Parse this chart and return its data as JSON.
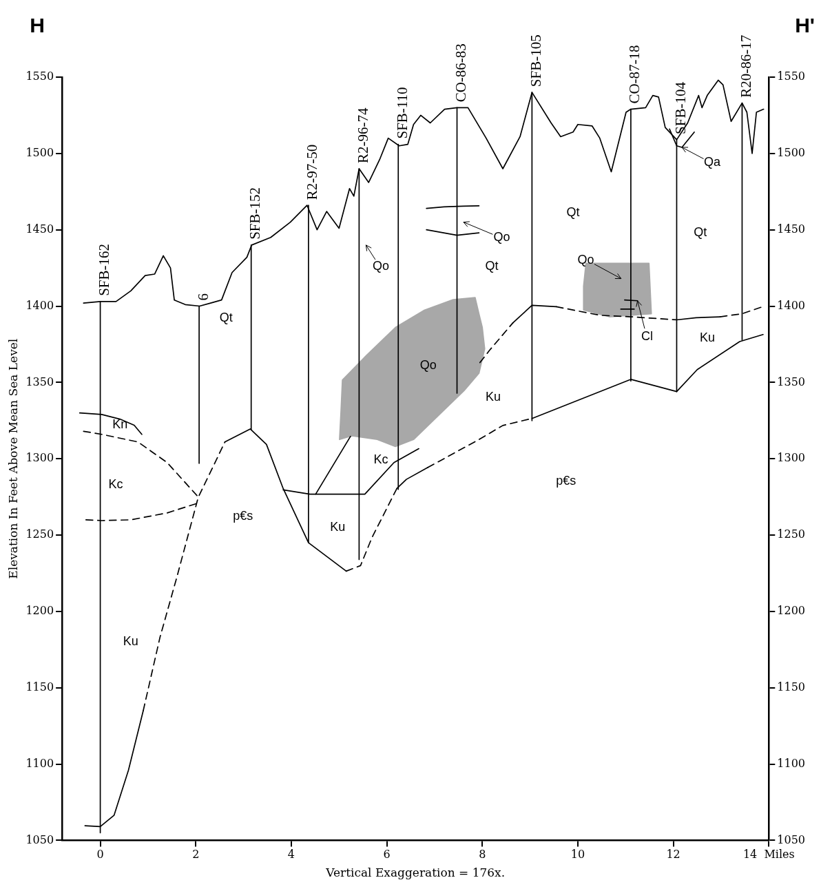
{
  "chart_data": {
    "type": "line",
    "xlabel": "Vertical Exaggeration = 176x.",
    "ylabel": "Elevation In Feet Above Mean Sea Level",
    "xlim": [
      -0.8,
      14
    ],
    "xticks": [
      0,
      2,
      4,
      6,
      8,
      10,
      12,
      {
        "value": 14,
        "label": "14  Miles"
      }
    ],
    "ylim": [
      1050,
      1550
    ],
    "yticks": [
      1050,
      1100,
      1150,
      1200,
      1250,
      1300,
      1350,
      1400,
      1450,
      1500,
      1550
    ],
    "y2lim": [
      1050,
      1550
    ],
    "y2ticks": [
      1050,
      1100,
      1150,
      1200,
      1250,
      1300,
      1350,
      1400,
      1450,
      1500,
      1550
    ],
    "grid": false,
    "legend": false,
    "marker": "none",
    "line_style": "solid",
    "series": [
      {
        "color": "#000000",
        "x": [
          -0.35,
          0,
          0.33,
          0.64,
          0.94,
          1.14,
          1.32,
          1.47,
          1.55,
          1.78,
          2.08,
          2.31,
          2.54,
          2.76,
          3.07,
          3.17,
          3.57,
          3.98,
          4.33,
          4.54,
          4.74,
          5.0,
          5.22,
          5.31,
          5.42,
          5.62,
          5.85,
          6.03,
          6.26,
          6.44,
          6.56,
          6.71,
          6.91,
          7.21,
          7.47,
          7.7,
          8.08,
          8.43,
          8.79,
          9.04,
          9.44,
          9.64,
          9.9,
          10.0,
          10.3,
          10.46,
          10.7,
          11.01,
          11.11,
          11.42,
          11.57,
          11.69,
          11.83,
          12.07,
          12.3,
          12.53,
          12.6,
          12.71,
          12.94,
          13.04,
          13.21,
          13.44,
          13.54,
          13.65,
          13.74,
          13.89
        ],
        "values": [
          1402,
          1403,
          1403,
          1410,
          1420,
          1421,
          1433,
          1425,
          1404,
          1401,
          1400,
          1402,
          1404,
          1422,
          1432,
          1440,
          1445,
          1455,
          1466,
          1450,
          1462,
          1451,
          1477,
          1472,
          1490,
          1481,
          1496,
          1510,
          1505,
          1506,
          1519,
          1525,
          1520,
          1529,
          1530,
          1530,
          1510,
          1490,
          1511,
          1540,
          1520,
          1511,
          1514,
          1519,
          1518,
          1510,
          1488,
          1527,
          1529,
          1530,
          1538,
          1537,
          1517,
          1509,
          1520,
          1538,
          1530,
          1538,
          1548,
          1545,
          1521,
          1533,
          1527,
          1500,
          1527,
          1529
        ]
      },
      {
        "name": "SFB-162",
        "color": "#000000",
        "x": [
          0,
          0
        ],
        "values": [
          1403,
          1055
        ]
      },
      {
        "name": "6",
        "color": "#000000",
        "x": [
          2.07,
          2.07
        ],
        "values": [
          1400,
          1297
        ]
      },
      {
        "name": "SFB-152",
        "color": "#000000",
        "x": [
          3.16,
          3.16
        ],
        "values": [
          1440,
          1319
        ]
      },
      {
        "name": "R2-97-50",
        "color": "#000000",
        "x": [
          4.36,
          4.36
        ],
        "values": [
          1466,
          1245
        ]
      },
      {
        "name": "R2-96-74",
        "color": "#000000",
        "x": [
          5.42,
          5.42
        ],
        "values": [
          1490,
          1234
        ]
      },
      {
        "name": "SFB-110",
        "color": "#000000",
        "x": [
          6.24,
          6.24
        ],
        "values": [
          1506,
          1280
        ]
      },
      {
        "name": "CO-86-83",
        "color": "#000000",
        "x": [
          7.47,
          7.47
        ],
        "values": [
          1530,
          1343
        ]
      },
      {
        "name": "SFB-105",
        "color": "#000000",
        "x": [
          9.04,
          9.04
        ],
        "values": [
          1540,
          1325
        ]
      },
      {
        "name": "CO-87-18",
        "color": "#000000",
        "x": [
          11.11,
          11.11
        ],
        "values": [
          1529,
          1351
        ]
      },
      {
        "name": "SFB-104",
        "color": "#000000",
        "x": [
          12.07,
          12.07
        ],
        "values": [
          1509,
          1344
        ]
      },
      {
        "name": "R20-86-17",
        "color": "#000000",
        "x": [
          13.44,
          13.44
        ],
        "values": [
          1533,
          1378
        ]
      },
      {
        "color": "#000000",
        "x": [
          -0.43,
          0.03,
          0.41,
          0.71,
          0.87
        ],
        "values": [
          1330,
          1329,
          1326,
          1322,
          1316
        ]
      },
      {
        "color": "#000000",
        "line_style": "dashed",
        "x": [
          -0.35,
          0.03,
          0.79,
          1.4,
          2.05
        ],
        "values": [
          1318,
          1316,
          1311,
          1297.5,
          1275
        ]
      },
      {
        "color": "#000000",
        "line_style": "dashed",
        "x": [
          -0.3,
          0.03,
          0.64,
          1.4,
          2.05
        ],
        "values": [
          1260,
          1259.5,
          1260,
          1264.5,
          1271
        ]
      },
      {
        "color": "#000000",
        "x": [
          -0.32,
          0,
          0.29,
          0.59,
          0.9
        ],
        "values": [
          1059.6,
          1059,
          1066.5,
          1096,
          1135
        ]
      },
      {
        "color": "#000000",
        "line_style": "dashed",
        "x": [
          0.9,
          1.25,
          1.6,
          2.05,
          2.61
        ],
        "values": [
          1135,
          1183,
          1222,
          1274.6,
          1311
        ]
      },
      {
        "color": "#000000",
        "x": [
          2.61,
          3.14,
          3.48,
          3.83,
          4.36,
          5.15
        ],
        "values": [
          1311,
          1319.5,
          1309.4,
          1280.5,
          1245,
          1226.4
        ]
      },
      {
        "color": "#000000",
        "line_style": "dashed",
        "x": [
          5.15,
          5.45,
          5.69,
          6.21
        ],
        "values": [
          1226.4,
          1230,
          1248.4,
          1280.5
        ]
      },
      {
        "color": "#000000",
        "x": [
          6.21,
          6.41,
          6.86
        ],
        "values": [
          1280.5,
          1286.5,
          1294.3
        ]
      },
      {
        "color": "#000000",
        "line_style": "dashed",
        "x": [
          6.86,
          7.93,
          8.43,
          9.04
        ],
        "values": [
          1294.3,
          1312.6,
          1321.8,
          1326.4
        ]
      },
      {
        "color": "#000000",
        "x": [
          9.04,
          11.07,
          11.11,
          12.07,
          12.5,
          13.39,
          13.88
        ],
        "values": [
          1326.4,
          1351.5,
          1352,
          1344,
          1358.4,
          1376.8,
          1381.4
        ]
      },
      {
        "color": "#000000",
        "x": [
          3.83,
          4.39,
          5.54,
          6.15,
          6.67
        ],
        "values": [
          1279.6,
          1276.8,
          1276.8,
          1297.5,
          1306.6
        ]
      },
      {
        "color": "#000000",
        "x": [
          4.51,
          5.24
        ],
        "values": [
          1276.8,
          1314.7
        ]
      },
      {
        "color": "#000000",
        "line_style": "dashed",
        "x": [
          7.95,
          8.15,
          8.64
        ],
        "values": [
          1363,
          1371,
          1389
        ]
      },
      {
        "color": "#000000",
        "x": [
          8.64,
          9.04,
          9.55
        ],
        "values": [
          1389,
          1400.5,
          1399.6
        ]
      },
      {
        "color": "#000000",
        "line_style": "dashed",
        "x": [
          9.55,
          10.46,
          11.11,
          12.07
        ],
        "values": [
          1399.6,
          1394,
          1393,
          1391
        ]
      },
      {
        "color": "#000000",
        "x": [
          12.07,
          12.48,
          12.98
        ],
        "values": [
          1391,
          1392.4,
          1393
        ]
      },
      {
        "color": "#000000",
        "line_style": "dashed",
        "x": [
          12.98,
          13.44,
          13.88
        ],
        "values": [
          1393,
          1395,
          1399.7
        ]
      },
      {
        "color": "#000000",
        "x": [
          11.92,
          12.07,
          12.18,
          12.44
        ],
        "values": [
          1516,
          1505,
          1504,
          1514
        ]
      },
      {
        "type": "area",
        "color": "#a8a8a8",
        "x": [
          5.01,
          5.04,
          5.07,
          5.57,
          6.18,
          6.79,
          7.39,
          7.85,
          7.93,
          8.0,
          8.05,
          7.93,
          7.62,
          7.17,
          6.56,
          6.18,
          5.8,
          5.27,
          5.01
        ],
        "values": [
          1312.6,
          1331,
          1351.6,
          1367.6,
          1386,
          1397.4,
          1404.3,
          1405.6,
          1395,
          1386,
          1372,
          1356,
          1344.7,
          1331,
          1312.6,
          1308,
          1312.6,
          1315,
          1312.6
        ]
      },
      {
        "type": "area",
        "color": "#a8a8a8",
        "x": [
          10.17,
          11.49,
          11.54,
          10.66,
          10.12,
          10.12,
          10.17
        ],
        "values": [
          1428,
          1428,
          1395,
          1393,
          1397.4,
          1413,
          1428
        ]
      },
      {
        "color": "#000000",
        "x": [
          6.83,
          7.2,
          7.6,
          7.93
        ],
        "values": [
          1464,
          1465,
          1465.5,
          1465.7
        ]
      },
      {
        "color": "#000000",
        "x": [
          6.83,
          7.47,
          7.93
        ],
        "values": [
          1450,
          1446.4,
          1448
        ]
      },
      {
        "color": "#000000",
        "x": [
          10.98,
          11.25
        ],
        "values": [
          1404,
          1403.5
        ]
      },
      {
        "color": "#000000",
        "x": [
          10.9,
          11.18
        ],
        "values": [
          1398,
          1398
        ]
      }
    ],
    "annotations": [
      "H",
      "H'",
      "Qt",
      "Qt",
      "Qt",
      "Qt",
      "Kn",
      "Kc",
      "Kc",
      "p€s",
      "p€s",
      "Ku",
      "Ku",
      "Ku",
      "Ku",
      "Qo",
      "Qo",
      "Qo",
      "Qo",
      {
        "text": "Qa",
        "x": 12.18,
        "y": 1504
      },
      {
        "text": "Cl",
        "x": 11.25,
        "y": 1403.5
      }
    ]
  }
}
